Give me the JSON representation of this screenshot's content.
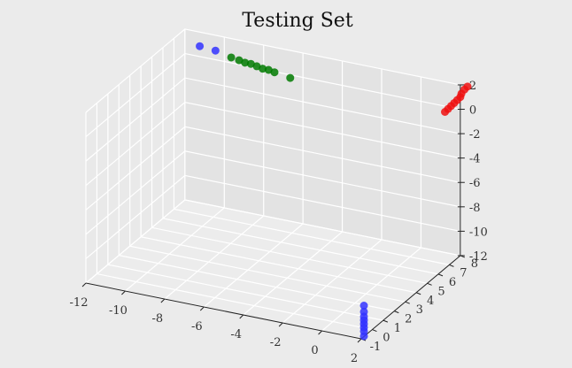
{
  "chart_data": {
    "type": "scatter",
    "projection": "3d",
    "title": "Testing Set",
    "grid": true,
    "x_axis": {
      "label": "",
      "ticks": [
        "-12",
        "-10",
        "-8",
        "-6",
        "-4",
        "-2",
        "0",
        "2"
      ],
      "range": [
        -12,
        2
      ]
    },
    "y_axis": {
      "label": "",
      "ticks": [
        "-1",
        "0",
        "1",
        "2",
        "3",
        "4",
        "5",
        "6",
        "7",
        "8"
      ],
      "range": [
        -1,
        8
      ]
    },
    "z_axis": {
      "label": "",
      "ticks": [
        "2",
        "0",
        "-2",
        "-4",
        "-6",
        "-8",
        "-10",
        "-12"
      ],
      "range": [
        -12,
        2
      ]
    },
    "series": [
      {
        "color": "#3333ff",
        "points": [
          {
            "x": 1.8,
            "y": -0.4,
            "z": -9.8
          },
          {
            "x": 1.8,
            "y": -0.4,
            "z": -10.3
          },
          {
            "x": 1.8,
            "y": -0.4,
            "z": -10.7
          },
          {
            "x": 1.8,
            "y": -0.4,
            "z": -11.0
          },
          {
            "x": 1.8,
            "y": -0.4,
            "z": -11.3
          },
          {
            "x": 1.8,
            "y": -0.4,
            "z": -11.6
          },
          {
            "x": 1.8,
            "y": -0.4,
            "z": -11.9
          },
          {
            "x": 1.8,
            "y": -0.4,
            "z": -12.3
          },
          {
            "x": -10.8,
            "y": 7.2,
            "z": 1.6
          },
          {
            "x": -10.0,
            "y": 7.2,
            "z": 1.5
          }
        ]
      },
      {
        "color": "#007a00",
        "points": [
          {
            "x": -9.2,
            "y": 7.2,
            "z": 1.2
          },
          {
            "x": -8.8,
            "y": 7.2,
            "z": 1.1
          },
          {
            "x": -8.5,
            "y": 7.2,
            "z": 1.0
          },
          {
            "x": -8.2,
            "y": 7.2,
            "z": 1.0
          },
          {
            "x": -7.9,
            "y": 7.2,
            "z": 0.9
          },
          {
            "x": -7.6,
            "y": 7.2,
            "z": 0.8
          },
          {
            "x": -7.3,
            "y": 7.2,
            "z": 0.8
          },
          {
            "x": -7.0,
            "y": 7.2,
            "z": 0.7
          },
          {
            "x": -6.2,
            "y": 7.2,
            "z": 0.5
          }
        ]
      },
      {
        "color": "#ee1111",
        "points": [
          {
            "x": 1.5,
            "y": 7.5,
            "z": 0.0
          },
          {
            "x": 1.6,
            "y": 7.6,
            "z": 0.2
          },
          {
            "x": 1.7,
            "y": 7.7,
            "z": 0.4
          },
          {
            "x": 1.8,
            "y": 7.8,
            "z": 0.6
          },
          {
            "x": 1.9,
            "y": 7.9,
            "z": 0.8
          },
          {
            "x": 2.0,
            "y": 8.0,
            "z": 1.0
          },
          {
            "x": 2.0,
            "y": 8.1,
            "z": 1.2
          },
          {
            "x": 2.1,
            "y": 8.2,
            "z": 1.5
          },
          {
            "x": 2.2,
            "y": 8.3,
            "z": 1.7
          }
        ]
      }
    ]
  },
  "colors": {
    "pane_back": "#e3e3e3",
    "pane_side": "#e9e9e9",
    "pane_floor": "#ececec",
    "grid": "#ffffff",
    "axis": "#222222"
  }
}
